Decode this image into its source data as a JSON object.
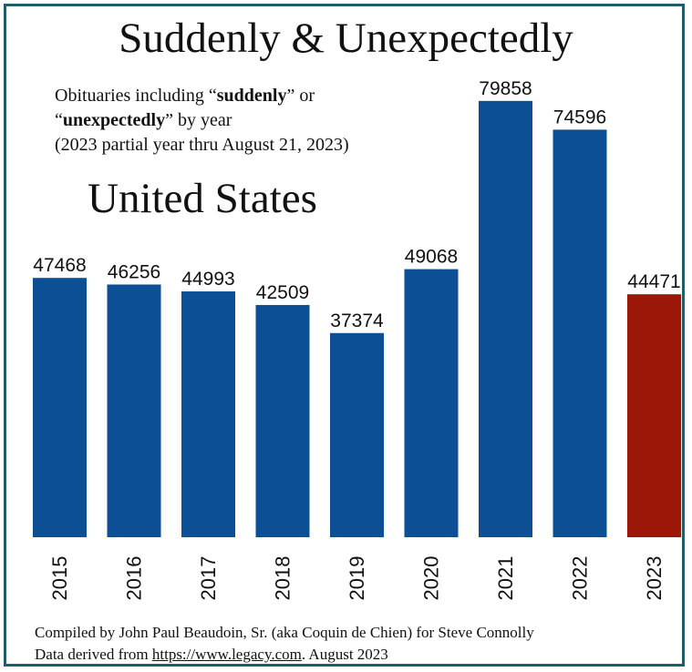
{
  "title": "Suddenly & Unexpectedly",
  "subtitle": {
    "l1_pre": "Obituaries including “",
    "l1_bold": "suddenly",
    "l1_post": "” or",
    "l2_pre": "“",
    "l2_bold": "unexpectedly",
    "l2_post": "” by year",
    "l3": "(2023 partial year thru August 21, 2023)"
  },
  "region": "United States",
  "footer": {
    "line1": "Compiled by John Paul Beaudoin, Sr. (aka Coquin de Chien) for Steve Connolly",
    "line2_pre": "Data derived from ",
    "line2_link": "https://www.legacy.com",
    "line2_post": ". August 2023"
  },
  "colors": {
    "bar": "#0d4f94",
    "highlight": "#9b1707",
    "border": "#1f5f6b"
  },
  "chart_data": {
    "type": "bar",
    "categories": [
      "2015",
      "2016",
      "2017",
      "2018",
      "2019",
      "2020",
      "2021",
      "2022",
      "2023"
    ],
    "values": [
      47468,
      46256,
      44993,
      42509,
      37374,
      49068,
      79858,
      74596,
      44471
    ],
    "highlight_categories": [
      "2023"
    ],
    "title": "Suddenly & Unexpectedly",
    "xlabel": "",
    "ylabel": "",
    "ylim": [
      0,
      80000
    ],
    "grid": false,
    "legend": "none"
  }
}
